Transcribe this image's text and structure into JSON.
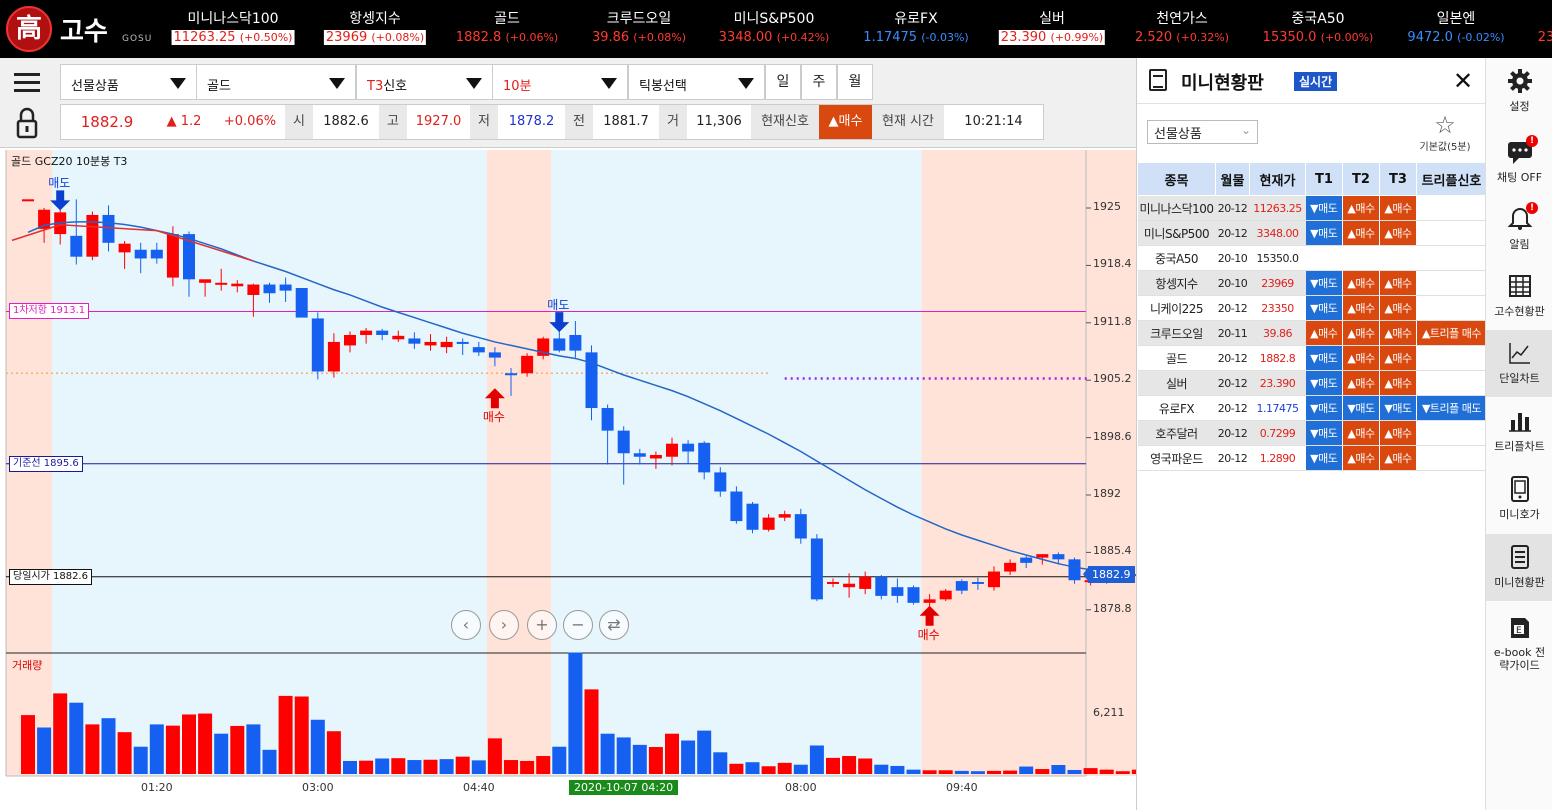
{
  "logo": {
    "seal": "高",
    "name": "고수",
    "sub": "GOSU"
  },
  "ticker": [
    {
      "name": "미니나스닥100",
      "value": "11263.25",
      "change": "(+0.50%)",
      "style": "hl"
    },
    {
      "name": "항셍지수",
      "value": "23969",
      "change": "(+0.08%)",
      "style": "hl"
    },
    {
      "name": "골드",
      "value": "1882.8",
      "change": "(+0.06%)",
      "style": "up"
    },
    {
      "name": "크루드오일",
      "value": "39.86",
      "change": "(+0.08%)",
      "style": "up"
    },
    {
      "name": "미니S&P500",
      "value": "3348.00",
      "change": "(+0.42%)",
      "style": "up"
    },
    {
      "name": "유로FX",
      "value": "1.17475",
      "change": "(-0.03%)",
      "style": "dn"
    },
    {
      "name": "실버",
      "value": "23.390",
      "change": "(+0.99%)",
      "style": "hl"
    },
    {
      "name": "천연가스",
      "value": "2.520",
      "change": "(+0.32%)",
      "style": "up"
    },
    {
      "name": "중국A50",
      "value": "15350.0",
      "change": "(+0.00%)",
      "style": "up"
    },
    {
      "name": "일본엔",
      "value": "9472.0",
      "change": "(-0.02%)",
      "style": "dn"
    },
    {
      "name": "",
      "value": "23",
      "change": "",
      "style": "up"
    }
  ],
  "toolbar": {
    "category": "선물상품",
    "product": "골드",
    "signal_prefix": "T3",
    "signal_suffix": "신호",
    "interval": "10분",
    "tick_select": "틱봉선택",
    "periods": [
      "일",
      "주",
      "월"
    ]
  },
  "quote": {
    "price": "1882.9",
    "change": "▲ 1.2",
    "pct": "+0.06%",
    "open_label": "시",
    "open": "1882.6",
    "high_label": "고",
    "high": "1927.0",
    "low_label": "저",
    "low": "1878.2",
    "prev_label": "전",
    "prev": "1881.7",
    "vol_label": "거",
    "volume": "11,306",
    "signal_label": "현재신호",
    "signal": "▲매수",
    "time_label": "현재 시간",
    "time": "10:21:14"
  },
  "chart": {
    "title": "골드  GCZ20  10분봉  T3",
    "levels": [
      {
        "label": "1차저항 1913.1",
        "value": 1913.1,
        "color": "#e020c0"
      },
      {
        "label": "기준선 1895.6",
        "value": 1895.6,
        "color": "#1a1aa0"
      },
      {
        "label": "당일시가 1882.6",
        "value": 1882.6,
        "color": "#111111"
      }
    ],
    "current_price": "1882.9",
    "date_badge": "2020-10-07 04:20",
    "volume_label": "거래량",
    "volume_tick": "6,211",
    "signals": [
      {
        "type": "sell",
        "label": "매도",
        "index": 2,
        "price": 1924.5
      },
      {
        "type": "sell",
        "label": "매도",
        "index": 33,
        "price": 1910.5
      },
      {
        "type": "buy",
        "label": "매수",
        "index": 29,
        "price": 1904.5
      },
      {
        "type": "buy",
        "label": "매수",
        "index": 56,
        "price": 1879.5
      }
    ],
    "nav_icons": [
      "chevron-left-icon",
      "chevron-right-icon",
      "zoom-in-icon",
      "zoom-out-icon",
      "refresh-icon"
    ]
  },
  "chart_data": {
    "type": "candlestick",
    "title": "골드  GCZ20  10분봉  T3",
    "ylim": [
      1875.0,
      1930.0
    ],
    "yticks": [
      1925.0,
      1918.4,
      1911.8,
      1905.2,
      1898.6,
      1892.0,
      1885.4,
      1878.8
    ],
    "xticks": [
      "01:20",
      "03:00",
      "04:40",
      "08:00",
      "09:40"
    ],
    "candles": [
      [
        1926.0,
        1926.0,
        1926.0,
        1926.0
      ],
      [
        1924.8,
        1925.0,
        1921.0,
        1922.6
      ],
      [
        1924.5,
        1926.3,
        1920.8,
        1922.0
      ],
      [
        1921.8,
        1926.0,
        1918.5,
        1919.4
      ],
      [
        1919.4,
        1924.6,
        1919.0,
        1924.2
      ],
      [
        1924.2,
        1925.3,
        1920.0,
        1921.0
      ],
      [
        1920.9,
        1921.2,
        1918.0,
        1919.9
      ],
      [
        1920.2,
        1921.0,
        1917.5,
        1919.2
      ],
      [
        1919.2,
        1921.0,
        1918.6,
        1920.2
      ],
      [
        1922.0,
        1922.9,
        1916.0,
        1917.0
      ],
      [
        1922.0,
        1922.3,
        1914.8,
        1916.8
      ],
      [
        1916.8,
        1916.8,
        1914.8,
        1916.4
      ],
      [
        1916.2,
        1918.0,
        1915.5,
        1916.4
      ],
      [
        1916.0,
        1916.7,
        1915.3,
        1916.3
      ],
      [
        1916.2,
        1916.3,
        1912.5,
        1915.0
      ],
      [
        1915.2,
        1916.4,
        1914.1,
        1916.2
      ],
      [
        1915.5,
        1917.0,
        1914.2,
        1916.2
      ],
      [
        1915.8,
        1915.8,
        1912.4,
        1912.4
      ],
      [
        1912.3,
        1913.0,
        1905.3,
        1906.2
      ],
      [
        1906.2,
        1910.6,
        1905.5,
        1909.6
      ],
      [
        1909.2,
        1910.8,
        1908.4,
        1910.4
      ],
      [
        1910.4,
        1911.2,
        1909.4,
        1910.9
      ],
      [
        1910.9,
        1911.1,
        1909.8,
        1910.4
      ],
      [
        1910.3,
        1910.9,
        1909.6,
        1909.9
      ],
      [
        1910.0,
        1910.7,
        1908.8,
        1909.4
      ],
      [
        1909.6,
        1910.5,
        1908.6,
        1909.2
      ],
      [
        1909.0,
        1910.2,
        1908.3,
        1909.6
      ],
      [
        1909.6,
        1910.0,
        1908.1,
        1909.4
      ],
      [
        1909.0,
        1909.6,
        1908.0,
        1908.4
      ],
      [
        1908.4,
        1909.0,
        1906.8,
        1907.8
      ],
      [
        1905.8,
        1906.6,
        1903.4,
        1906.0
      ],
      [
        1906.0,
        1908.3,
        1905.6,
        1908.0
      ],
      [
        1908.0,
        1910.2,
        1907.6,
        1910.0
      ],
      [
        1910.0,
        1911.4,
        1908.4,
        1908.6
      ],
      [
        1910.4,
        1912.0,
        1907.8,
        1908.6
      ],
      [
        1908.4,
        1909.2,
        1900.6,
        1902.0
      ],
      [
        1902.0,
        1902.4,
        1895.5,
        1899.4
      ],
      [
        1899.4,
        1899.9,
        1893.2,
        1896.8
      ],
      [
        1896.8,
        1897.3,
        1895.5,
        1896.4
      ],
      [
        1896.2,
        1897.0,
        1895.0,
        1896.6
      ],
      [
        1896.4,
        1898.6,
        1895.4,
        1897.9
      ],
      [
        1897.9,
        1898.3,
        1895.6,
        1897.0
      ],
      [
        1898.0,
        1898.2,
        1893.8,
        1894.6
      ],
      [
        1894.6,
        1895.2,
        1891.8,
        1892.4
      ],
      [
        1892.4,
        1893.0,
        1888.7,
        1889.0
      ],
      [
        1891.0,
        1891.2,
        1887.6,
        1888.0
      ],
      [
        1888.0,
        1889.8,
        1887.8,
        1889.4
      ],
      [
        1889.4,
        1890.2,
        1889.0,
        1889.8
      ],
      [
        1889.8,
        1890.4,
        1886.4,
        1887.0
      ],
      [
        1887.0,
        1887.5,
        1879.8,
        1880.0
      ],
      [
        1882.0,
        1882.4,
        1881.4,
        1881.8
      ],
      [
        1881.8,
        1883.0,
        1880.2,
        1881.4
      ],
      [
        1881.2,
        1883.2,
        1880.6,
        1882.6
      ],
      [
        1882.6,
        1882.8,
        1880.0,
        1880.4
      ],
      [
        1880.4,
        1882.4,
        1879.6,
        1881.4
      ],
      [
        1881.4,
        1881.6,
        1879.4,
        1879.6
      ],
      [
        1879.6,
        1880.6,
        1879.0,
        1880.0
      ],
      [
        1880.0,
        1881.2,
        1879.8,
        1881.0
      ],
      [
        1881.0,
        1882.3,
        1880.6,
        1882.1
      ],
      [
        1882.0,
        1882.5,
        1881.1,
        1881.8
      ],
      [
        1881.4,
        1883.8,
        1881.0,
        1883.2
      ],
      [
        1883.2,
        1884.6,
        1882.8,
        1884.2
      ],
      [
        1884.2,
        1885.0,
        1883.6,
        1884.8
      ],
      [
        1884.8,
        1885.2,
        1884.0,
        1885.2
      ],
      [
        1885.2,
        1885.4,
        1884.0,
        1884.6
      ],
      [
        1884.6,
        1884.8,
        1881.8,
        1882.2
      ],
      [
        1882.2,
        1882.8,
        1881.6,
        1882.0
      ],
      [
        1882.0,
        1883.4,
        1881.8,
        1883.0
      ],
      [
        1883.0,
        1883.4,
        1882.4,
        1882.9
      ],
      [
        1882.9,
        1883.2,
        1882.6,
        1882.9
      ]
    ],
    "candle_colors": [
      "red",
      "red",
      "red",
      "blue",
      "red",
      "blue",
      "red",
      "blue",
      "blue",
      "red",
      "blue",
      "red",
      "red",
      "red",
      "red",
      "blue",
      "blue",
      "blue",
      "blue",
      "red",
      "red",
      "red",
      "blue",
      "red",
      "blue",
      "red",
      "red",
      "blue",
      "blue",
      "blue",
      "blue",
      "red",
      "red",
      "blue",
      "blue",
      "blue",
      "blue",
      "blue",
      "blue",
      "red",
      "red",
      "blue",
      "blue",
      "blue",
      "blue",
      "blue",
      "red",
      "red",
      "blue",
      "blue",
      "red",
      "red",
      "red",
      "blue",
      "blue",
      "blue",
      "red",
      "red",
      "blue",
      "blue",
      "red",
      "red",
      "blue",
      "red",
      "blue",
      "blue",
      "red",
      "red",
      "red",
      "red"
    ],
    "ma": [
      1922.2,
      1923.0,
      1923.3,
      1923.4,
      1923.4,
      1923.3,
      1923.1,
      1922.8,
      1922.4,
      1922.0,
      1921.5,
      1920.9,
      1920.3,
      1919.6,
      1918.9,
      1918.3,
      1917.7,
      1917.0,
      1916.3,
      1915.6,
      1915.0,
      1914.3,
      1913.6,
      1913.0,
      1912.4,
      1911.8,
      1911.2,
      1910.6,
      1910.1,
      1909.6,
      1909.2,
      1908.8,
      1908.4,
      1908.0,
      1907.7,
      1907.2,
      1906.5,
      1905.8,
      1905.2,
      1904.6,
      1904.0,
      1903.3,
      1902.5,
      1901.7,
      1900.8,
      1899.9,
      1899.0,
      1898.0,
      1897.0,
      1895.9,
      1894.8,
      1893.7,
      1892.6,
      1891.6,
      1890.6,
      1889.7,
      1888.9,
      1888.1,
      1887.4,
      1886.8,
      1886.2,
      1885.6,
      1885.1,
      1884.6,
      1884.1,
      1883.7,
      1883.4,
      1883.1,
      1882.9,
      1882.8
    ],
    "volume": [
      1900,
      1500,
      2600,
      2300,
      1600,
      1800,
      1350,
      880,
      1600,
      1560,
      1920,
      1950,
      1300,
      1550,
      1600,
      780,
      2520,
      2500,
      1750,
      1380,
      420,
      430,
      500,
      510,
      450,
      460,
      480,
      560,
      440,
      1150,
      450,
      420,
      580,
      880,
      3920,
      2730,
      1300,
      1180,
      940,
      870,
      1300,
      1080,
      1400,
      700,
      330,
      380,
      250,
      360,
      300,
      920,
      520,
      580,
      500,
      300,
      260,
      140,
      120,
      120,
      100,
      90,
      100,
      110,
      240,
      160,
      290,
      130,
      190,
      140,
      90,
      140
    ],
    "volume_colors": [
      "red",
      "blue",
      "red",
      "blue",
      "red",
      "blue",
      "red",
      "blue",
      "blue",
      "red",
      "red",
      "red",
      "blue",
      "red",
      "blue",
      "blue",
      "red",
      "red",
      "blue",
      "red",
      "blue",
      "red",
      "blue",
      "red",
      "blue",
      "red",
      "blue",
      "red",
      "blue",
      "red",
      "red",
      "red",
      "red",
      "blue",
      "blue",
      "red",
      "blue",
      "blue",
      "blue",
      "red",
      "red",
      "blue",
      "blue",
      "blue",
      "red",
      "blue",
      "red",
      "red",
      "blue",
      "blue",
      "red",
      "red",
      "red",
      "blue",
      "blue",
      "blue",
      "red",
      "red",
      "blue",
      "blue",
      "red",
      "red",
      "blue",
      "red",
      "blue",
      "blue",
      "red",
      "red",
      "red",
      "red"
    ],
    "shading": [
      {
        "from": 0,
        "to": 2,
        "color": "pink"
      },
      {
        "from": 2,
        "to": 29,
        "color": "blue"
      },
      {
        "from": 29,
        "to": 33,
        "color": "pink"
      },
      {
        "from": 33,
        "to": 56,
        "color": "blue"
      },
      {
        "from": 56,
        "to": 69.5,
        "color": "pink"
      }
    ],
    "dotted_line": {
      "value": 1905.4,
      "from": 47,
      "to": 66,
      "color": "#a020f0"
    },
    "orange_dotted": {
      "value": 1906.0,
      "from": 0,
      "to": 46,
      "color": "#f4b070"
    }
  },
  "panel": {
    "title": "미니현황판",
    "realtime": "실시간",
    "category": "선물상품",
    "favorite": "기본값(5분)",
    "headers": [
      "종목",
      "월물",
      "현재가",
      "T1",
      "T2",
      "T3",
      "트리플신호"
    ],
    "rows": [
      {
        "name": "미니나스닥100",
        "month": "20-12",
        "price": "11263.25",
        "pc": "red",
        "t1": "▼매도",
        "t2": "▲매수",
        "t3": "▲매수",
        "tri": "",
        "g": true
      },
      {
        "name": "미니S&P500",
        "month": "20-12",
        "price": "3348.00",
        "pc": "red",
        "t1": "▼매도",
        "t2": "▲매수",
        "t3": "▲매수",
        "tri": "",
        "g": true
      },
      {
        "name": "중국A50",
        "month": "20-10",
        "price": "15350.0",
        "pc": "",
        "t1": "",
        "t2": "",
        "t3": "",
        "tri": "",
        "g": false
      },
      {
        "name": "항셍지수",
        "month": "20-10",
        "price": "23969",
        "pc": "red",
        "t1": "▼매도",
        "t2": "▲매수",
        "t3": "▲매수",
        "tri": "",
        "g": true,
        "lg": true
      },
      {
        "name": "니케이225",
        "month": "20-12",
        "price": "23350",
        "pc": "red",
        "t1": "▼매도",
        "t2": "▲매수",
        "t3": "▲매수",
        "tri": "",
        "g": false
      },
      {
        "name": "크루드오일",
        "month": "20-11",
        "price": "39.86",
        "pc": "red",
        "t1": "▲매수",
        "t2": "▲매수",
        "t3": "▲매수",
        "tri": "▲트리플 매수",
        "g": true
      },
      {
        "name": "골드",
        "month": "20-12",
        "price": "1882.8",
        "pc": "red",
        "t1": "▼매도",
        "t2": "▲매수",
        "t3": "▲매수",
        "tri": "",
        "g": false
      },
      {
        "name": "실버",
        "month": "20-12",
        "price": "23.390",
        "pc": "red",
        "t1": "▼매도",
        "t2": "▲매수",
        "t3": "▲매수",
        "tri": "",
        "g": true
      },
      {
        "name": "유로FX",
        "month": "20-12",
        "price": "1.17475",
        "pc": "blue",
        "t1": "▼매도",
        "t2": "▼매도",
        "t3": "▼매도",
        "tri": "▼트리플 매도",
        "g": false
      },
      {
        "name": "호주달러",
        "month": "20-12",
        "price": "0.7299",
        "pc": "red",
        "t1": "▼매도",
        "t2": "▲매수",
        "t3": "▲매수",
        "tri": "",
        "g": true
      },
      {
        "name": "영국파운드",
        "month": "20-12",
        "price": "1.2890",
        "pc": "red",
        "t1": "▼매도",
        "t2": "▲매수",
        "t3": "▲매수",
        "tri": "",
        "g": false
      }
    ]
  },
  "sidenav": [
    {
      "label": "설정",
      "icon": "gear-icon",
      "badge": ""
    },
    {
      "label": "채팅 OFF",
      "icon": "chat-icon",
      "badge": "!"
    },
    {
      "label": "알림",
      "icon": "bell-icon",
      "badge": "!"
    },
    {
      "label": "고수현황판",
      "icon": "grid-icon",
      "badge": ""
    },
    {
      "label": "단일차트",
      "icon": "line-chart-icon",
      "badge": ""
    },
    {
      "label": "트리플차트",
      "icon": "bar-chart-icon",
      "badge": ""
    },
    {
      "label": "미니호가",
      "icon": "phone-icon",
      "badge": ""
    },
    {
      "label": "미니현황판",
      "icon": "list-icon",
      "badge": ""
    },
    {
      "label": "e-book 전략가이드",
      "icon": "book-icon",
      "badge": ""
    }
  ],
  "colors": {
    "up": "#ff0000",
    "down": "#1560f0",
    "pink": "#ffe3d8",
    "blue": "#e6f6fc",
    "ma": "#2466c8"
  }
}
